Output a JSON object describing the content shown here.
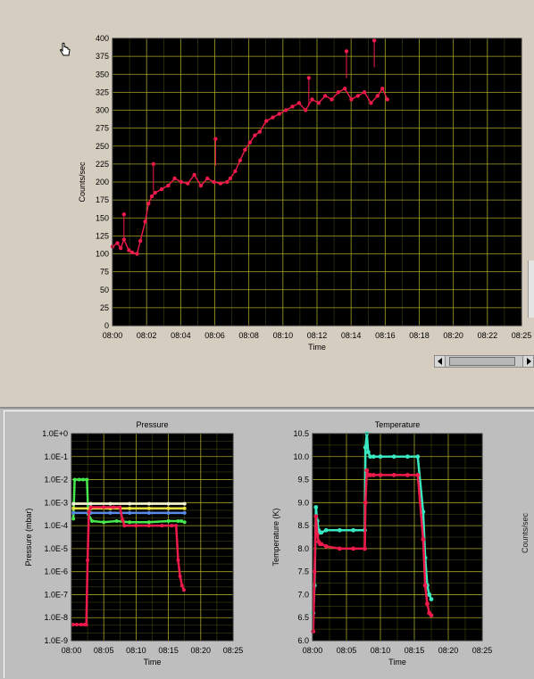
{
  "colors": {
    "plot_bg": "#000000",
    "grid": "#b7b62d",
    "counts": "#ef1a4c",
    "p_green": "#47e84d",
    "p_white": "#f3f3d8",
    "p_yellow": "#e8e040",
    "p_blue": "#5a8ae8",
    "t_cyan": "#3ae8c1",
    "t_red": "#ef1a4c"
  },
  "icons": {
    "cursor": "hand-pointer-icon"
  },
  "chart_data": [
    {
      "type": "scatter",
      "title": "",
      "xlabel": "Time",
      "ylabel": "Counts/sec",
      "x_ticks": [
        "08:00",
        "08:02",
        "08:04",
        "08:06",
        "08:08",
        "08:10",
        "08:12",
        "08:14",
        "08:16",
        "08:18",
        "08:20",
        "08:22",
        "08:25"
      ],
      "y_ticks": [
        "0",
        "25",
        "50",
        "75",
        "100",
        "125",
        "150",
        "175",
        "200",
        "225",
        "250",
        "275",
        "300",
        "325",
        "350",
        "375",
        "400"
      ],
      "xlim_minutes": [
        0,
        25
      ],
      "ylim": [
        0,
        400
      ],
      "series": [
        {
          "color": "#ef1a4c",
          "x": [
            0,
            0.3,
            0.5,
            0.7,
            1.0,
            1.2,
            1.5,
            1.7,
            2.0,
            2.2,
            2.4,
            2.6,
            3.0,
            3.4,
            3.8,
            4.2,
            4.6,
            5.0,
            5.4,
            5.8,
            6.2,
            6.6,
            7.0,
            7.2,
            7.5,
            7.8,
            8.1,
            8.4,
            8.7,
            9.0,
            9.4,
            9.8,
            10.2,
            10.6,
            11.0,
            11.4,
            11.8,
            12.2,
            12.6,
            13.0,
            13.4,
            13.8,
            14.2,
            14.6,
            15.0,
            15.4,
            15.8,
            16.2,
            16.5,
            16.8
          ],
          "y": [
            110,
            115,
            108,
            120,
            105,
            102,
            100,
            118,
            145,
            170,
            180,
            185,
            190,
            195,
            205,
            200,
            198,
            210,
            195,
            205,
            200,
            198,
            200,
            205,
            215,
            230,
            245,
            255,
            265,
            270,
            285,
            290,
            295,
            300,
            305,
            310,
            300,
            315,
            310,
            320,
            315,
            325,
            330,
            315,
            320,
            325,
            310,
            320,
            330,
            315
          ]
        },
        {
          "color": "#ef1a4c",
          "spikes": true,
          "x": [
            0.7,
            2.5,
            6.3,
            12.0,
            14.3,
            16.0
          ],
          "y": [
            155,
            225,
            260,
            345,
            382,
            397
          ]
        }
      ]
    },
    {
      "type": "line",
      "title": "Pressure",
      "xlabel": "Time",
      "ylabel": "Pressure (mbar)",
      "y_scale": "log",
      "x_ticks": [
        "08:00",
        "08:05",
        "08:10",
        "08:15",
        "08:20",
        "08:25"
      ],
      "y_ticks": [
        "1.0E-9",
        "1.0E-8",
        "1.0E-7",
        "1.0E-6",
        "1.0E-5",
        "1.0E-4",
        "1.0E-3",
        "1.0E-2",
        "1.0E-1",
        "1.0E+0"
      ],
      "xlim_minutes": [
        0,
        25
      ],
      "ylim_log10": [
        -9,
        0
      ],
      "series": [
        {
          "color": "#47e84d",
          "x": [
            0.3,
            0.5,
            1.2,
            1.8,
            2.4,
            2.6,
            3.2,
            5.0,
            7.0,
            9.0,
            12.0,
            15.0,
            16.5,
            17.0,
            17.5
          ],
          "y_log10": [
            -3.7,
            -2.0,
            -2.0,
            -2.0,
            -2.0,
            -3.5,
            -3.8,
            -3.85,
            -3.8,
            -3.85,
            -3.85,
            -3.8,
            -3.8,
            -3.8,
            -3.85
          ]
        },
        {
          "color": "#f3f3d8",
          "x": [
            0.3,
            3.0,
            6.0,
            9.0,
            12.0,
            15.0,
            17.5
          ],
          "y_log10": [
            -3.05,
            -3.05,
            -3.05,
            -3.05,
            -3.05,
            -3.05,
            -3.05
          ]
        },
        {
          "color": "#e8e040",
          "x": [
            0.3,
            3.0,
            6.0,
            9.0,
            12.0,
            15.0,
            17.5
          ],
          "y_log10": [
            -3.25,
            -3.25,
            -3.25,
            -3.25,
            -3.25,
            -3.25,
            -3.25
          ]
        },
        {
          "color": "#5a8ae8",
          "x": [
            0.3,
            3.0,
            6.0,
            9.0,
            12.0,
            15.0,
            17.5
          ],
          "y_log10": [
            -3.45,
            -3.45,
            -3.45,
            -3.45,
            -3.45,
            -3.45,
            -3.45
          ]
        },
        {
          "color": "#ef1a4c",
          "x": [
            0.2,
            0.8,
            1.5,
            2.0,
            2.3,
            2.5,
            2.7,
            3.0,
            5.0,
            6.5,
            7.5,
            7.9,
            8.2,
            10.0,
            12.0,
            14.0,
            15.5,
            16.2,
            16.5,
            16.8,
            17.1,
            17.4
          ],
          "y_log10": [
            -8.3,
            -8.3,
            -8.3,
            -8.3,
            -8.3,
            -5.5,
            -3.4,
            -3.2,
            -3.2,
            -3.2,
            -3.2,
            -3.75,
            -4.0,
            -4.0,
            -4.0,
            -4.0,
            -4.0,
            -4.0,
            -5.5,
            -6.2,
            -6.6,
            -6.8
          ]
        }
      ]
    },
    {
      "type": "line",
      "title": "Temperature",
      "xlabel": "Time",
      "ylabel": "Temperature (K)",
      "x_ticks": [
        "08:00",
        "08:05",
        "08:10",
        "08:15",
        "08:20",
        "08:25"
      ],
      "y_ticks": [
        "6.0",
        "6.5",
        "7.0",
        "7.5",
        "8.0",
        "8.5",
        "9.0",
        "9.5",
        "10.0",
        "10.5"
      ],
      "xlim_minutes": [
        0,
        25
      ],
      "ylim": [
        6.0,
        10.5
      ],
      "series": [
        {
          "color": "#3ae8c1",
          "x": [
            0.1,
            0.3,
            0.5,
            0.7,
            0.9,
            1.1,
            1.3,
            2.0,
            4.0,
            6.0,
            7.7,
            7.8,
            8.0,
            8.2,
            8.5,
            9.0,
            10.0,
            12.0,
            14.0,
            15.5,
            16.3,
            16.6,
            16.9,
            17.2,
            17.5
          ],
          "y": [
            6.6,
            7.2,
            8.9,
            8.6,
            8.4,
            8.35,
            8.35,
            8.4,
            8.4,
            8.4,
            8.4,
            10.2,
            10.5,
            10.1,
            10.0,
            10.0,
            10.0,
            10.0,
            10.0,
            10.0,
            8.8,
            7.8,
            7.2,
            7.0,
            6.9
          ]
        },
        {
          "color": "#ef1a4c",
          "x": [
            0.1,
            0.3,
            0.5,
            0.7,
            0.9,
            1.1,
            1.3,
            2.0,
            4.0,
            6.0,
            7.7,
            7.8,
            8.0,
            8.2,
            8.5,
            9.0,
            10.0,
            12.0,
            14.0,
            15.5,
            16.3,
            16.6,
            16.9,
            17.2,
            17.5
          ],
          "y": [
            6.2,
            7.5,
            8.7,
            8.3,
            8.15,
            8.1,
            8.1,
            8.05,
            8.0,
            8.0,
            8.0,
            9.0,
            9.7,
            9.6,
            9.6,
            9.6,
            9.6,
            9.6,
            9.6,
            9.6,
            8.2,
            7.2,
            6.8,
            6.6,
            6.55
          ]
        }
      ]
    }
  ],
  "side_label": "Counts/sec"
}
